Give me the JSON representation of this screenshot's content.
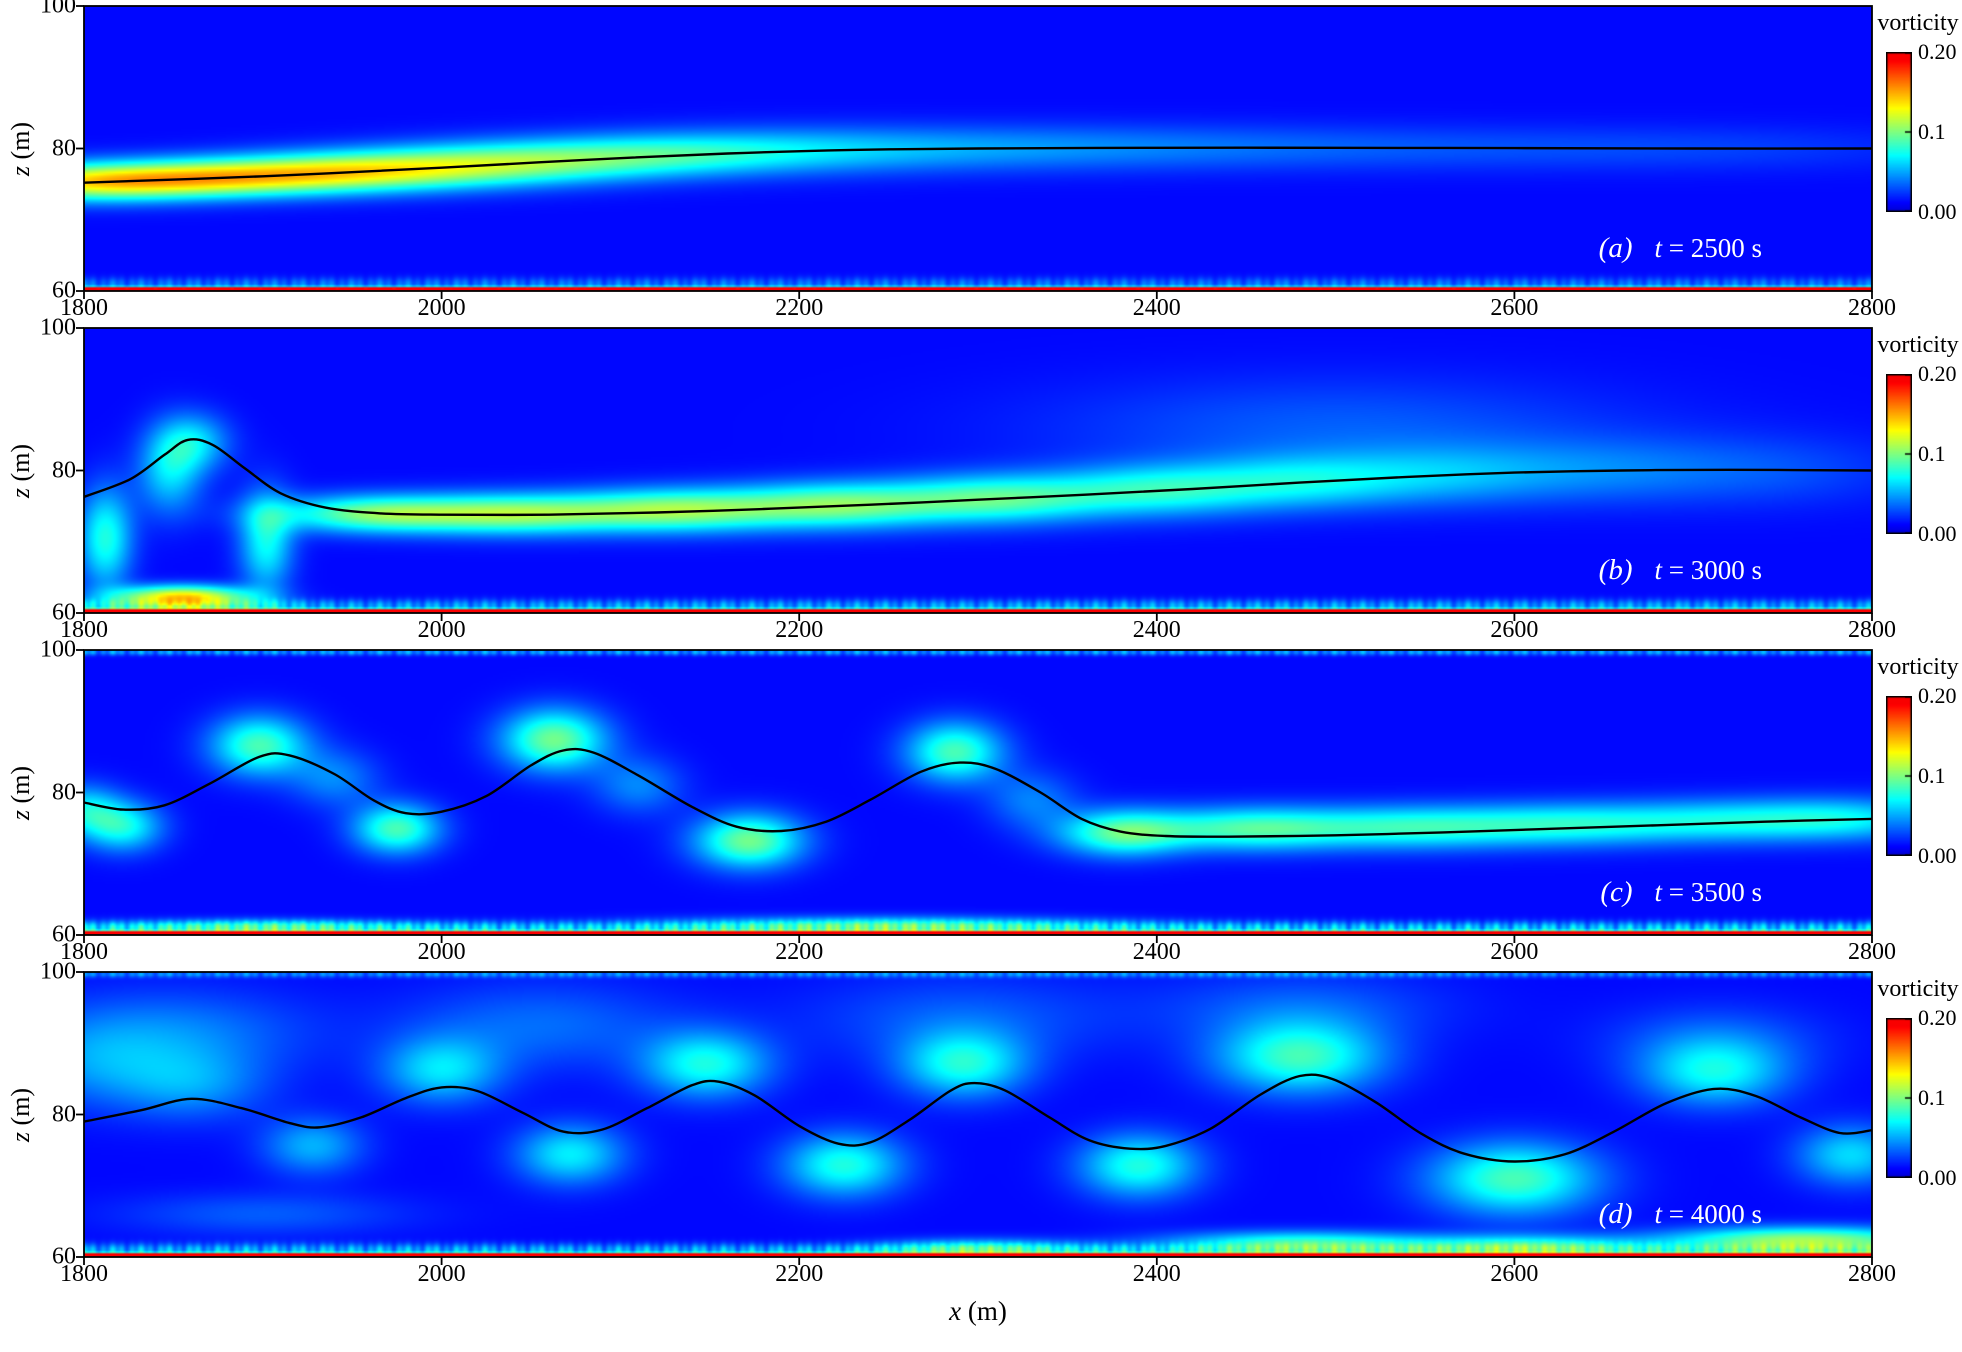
{
  "figure": {
    "x_axis": {
      "var": "x",
      "unit": " (m)",
      "ticks": [
        "1800",
        "2000",
        "2200",
        "2400",
        "2600",
        "2800"
      ],
      "tick_values": [
        1800,
        2000,
        2200,
        2400,
        2600,
        2800
      ],
      "range": [
        1800,
        2800
      ]
    },
    "z_axis": {
      "var": "z",
      "unit": " (m)",
      "ticks": [
        "100",
        "80",
        "60"
      ],
      "tick_values": [
        100,
        80,
        60
      ],
      "range": [
        60,
        100
      ]
    },
    "colorbar": {
      "title": "vorticity",
      "ticks": [
        "0.20",
        "0.1",
        "0.00"
      ],
      "tick_values": [
        0.2,
        0.1,
        0.0
      ],
      "range": [
        0,
        0.2
      ]
    }
  },
  "chart_data": {
    "type": "heatmap",
    "x_range": [
      1800,
      2800
    ],
    "z_range": [
      60,
      100
    ],
    "value_label": "vorticity",
    "value_range": [
      0,
      0.2
    ],
    "background_vorticity": 0.012,
    "panels": [
      {
        "label": "(a)",
        "time_var": "t",
        "time_rest": " = 2500 s",
        "time_s": 2500,
        "interface_line": [
          [
            1800,
            75.2
          ],
          [
            1900,
            76.1
          ],
          [
            2000,
            77.3
          ],
          [
            2080,
            78.4
          ],
          [
            2160,
            79.3
          ],
          [
            2230,
            79.8
          ],
          [
            2300,
            80.0
          ],
          [
            2400,
            80.1
          ],
          [
            2500,
            80.1
          ],
          [
            2600,
            80.05
          ],
          [
            2700,
            80.0
          ],
          [
            2800,
            80.0
          ]
        ],
        "blobs": [
          [
            1800,
            75.2,
            0.1,
            70,
            2.6
          ],
          [
            1880,
            75.9,
            0.095,
            75,
            2.6
          ],
          [
            1960,
            76.9,
            0.085,
            75,
            2.8
          ],
          [
            2040,
            78.0,
            0.068,
            75,
            3.0
          ],
          [
            2120,
            79.1,
            0.05,
            75,
            3.0
          ],
          [
            2200,
            79.7,
            0.035,
            85,
            3.2
          ],
          [
            2300,
            80.0,
            0.024,
            95,
            3.2
          ],
          [
            2400,
            80.1,
            0.016,
            100,
            3.2
          ],
          [
            2500,
            80.1,
            0.012,
            110,
            3.2
          ],
          [
            2620,
            80.0,
            0.01,
            120,
            3.2
          ],
          [
            2740,
            80.0,
            0.009,
            120,
            3.2
          ]
        ],
        "bottom_red": [
          0.3,
          60.15,
          0.35
        ],
        "bottom_green": [
          0.035,
          61.0,
          0.9
        ],
        "top_green": null
      },
      {
        "label": "(b)",
        "time_var": "t",
        "time_rest": " = 3000 s",
        "time_s": 3000,
        "interface_line": [
          [
            1800,
            76.3
          ],
          [
            1826,
            78.8
          ],
          [
            1845,
            82.2
          ],
          [
            1858,
            84.3
          ],
          [
            1872,
            83.6
          ],
          [
            1890,
            80.3
          ],
          [
            1910,
            76.8
          ],
          [
            1935,
            74.8
          ],
          [
            1965,
            74.0
          ],
          [
            2000,
            73.8
          ],
          [
            2060,
            73.8
          ],
          [
            2120,
            74.1
          ],
          [
            2180,
            74.6
          ],
          [
            2240,
            75.2
          ],
          [
            2300,
            75.9
          ],
          [
            2360,
            76.6
          ],
          [
            2420,
            77.4
          ],
          [
            2480,
            78.3
          ],
          [
            2540,
            79.1
          ],
          [
            2600,
            79.7
          ],
          [
            2660,
            80.0
          ],
          [
            2720,
            80.1
          ],
          [
            2800,
            80.0
          ]
        ],
        "blobs": [
          [
            1812,
            70.5,
            0.065,
            15,
            7.0
          ],
          [
            1848,
            80.0,
            0.05,
            18,
            6.0
          ],
          [
            1862,
            84.0,
            0.045,
            20,
            4.0
          ],
          [
            1902,
            70.0,
            0.06,
            15,
            7.0
          ],
          [
            1855,
            62.2,
            0.13,
            38,
            1.6
          ],
          [
            1960,
            73.9,
            0.08,
            55,
            2.6
          ],
          [
            2040,
            73.9,
            0.085,
            60,
            2.8
          ],
          [
            2130,
            74.4,
            0.085,
            60,
            3.0
          ],
          [
            2220,
            75.1,
            0.08,
            60,
            3.2
          ],
          [
            2310,
            76.0,
            0.072,
            60,
            3.4
          ],
          [
            2400,
            77.2,
            0.058,
            60,
            3.6
          ],
          [
            2480,
            78.4,
            0.045,
            60,
            3.8
          ],
          [
            2560,
            79.3,
            0.032,
            65,
            4.2
          ],
          [
            2650,
            79.9,
            0.022,
            70,
            4.6
          ],
          [
            2745,
            80.0,
            0.016,
            75,
            5.0
          ],
          [
            2500,
            86.0,
            0.02,
            160,
            7.0
          ]
        ],
        "bottom_red": [
          0.3,
          60.15,
          0.35
        ],
        "bottom_green": [
          0.05,
          61.0,
          0.9
        ],
        "top_green": null
      },
      {
        "label": "(c)",
        "time_var": "t",
        "time_rest": " = 3500 s",
        "time_s": 3500,
        "interface_line": [
          [
            1800,
            78.6
          ],
          [
            1822,
            77.6
          ],
          [
            1845,
            78.2
          ],
          [
            1870,
            81.2
          ],
          [
            1898,
            85.0
          ],
          [
            1915,
            85.2
          ],
          [
            1940,
            82.6
          ],
          [
            1962,
            78.9
          ],
          [
            1980,
            77.1
          ],
          [
            2000,
            77.3
          ],
          [
            2025,
            79.5
          ],
          [
            2050,
            83.8
          ],
          [
            2068,
            85.9
          ],
          [
            2085,
            85.6
          ],
          [
            2110,
            82.4
          ],
          [
            2140,
            78.0
          ],
          [
            2165,
            75.2
          ],
          [
            2190,
            74.6
          ],
          [
            2215,
            75.9
          ],
          [
            2240,
            79.0
          ],
          [
            2268,
            82.9
          ],
          [
            2290,
            84.2
          ],
          [
            2310,
            83.3
          ],
          [
            2335,
            80.0
          ],
          [
            2358,
            76.3
          ],
          [
            2380,
            74.5
          ],
          [
            2405,
            73.9
          ],
          [
            2440,
            73.8
          ],
          [
            2500,
            74.0
          ],
          [
            2560,
            74.4
          ],
          [
            2620,
            74.9
          ],
          [
            2680,
            75.4
          ],
          [
            2740,
            75.9
          ],
          [
            2800,
            76.3
          ]
        ],
        "blobs": [
          [
            1800,
            77.6,
            0.05,
            20,
            3.5
          ],
          [
            1822,
            75.2,
            0.06,
            22,
            3.5
          ],
          [
            1898,
            86.6,
            0.075,
            27,
            4.2
          ],
          [
            1975,
            74.9,
            0.075,
            24,
            3.5
          ],
          [
            2063,
            87.4,
            0.085,
            29,
            4.3
          ],
          [
            2172,
            73.2,
            0.085,
            30,
            3.8
          ],
          [
            2287,
            85.7,
            0.075,
            27,
            4.2
          ],
          [
            2380,
            74.3,
            0.075,
            35,
            3.2
          ],
          [
            2450,
            74.9,
            0.07,
            55,
            3.0
          ],
          [
            2540,
            75.1,
            0.062,
            65,
            3.0
          ],
          [
            2630,
            75.5,
            0.055,
            65,
            3.0
          ],
          [
            2720,
            76.0,
            0.05,
            65,
            3.0
          ],
          [
            2790,
            76.3,
            0.045,
            55,
            3.0
          ],
          [
            1940,
            82.0,
            0.03,
            25,
            4.0
          ],
          [
            2110,
            81.0,
            0.03,
            25,
            4.0
          ],
          [
            2330,
            79.0,
            0.028,
            25,
            4.0
          ],
          [
            2250,
            61.5,
            0.05,
            120,
            1.2
          ],
          [
            1900,
            61.3,
            0.04,
            80,
            1.0
          ]
        ],
        "bottom_red": [
          0.3,
          60.15,
          0.35
        ],
        "bottom_green": [
          0.065,
          61.0,
          0.9
        ],
        "top_green": [
          0.05,
          99.7,
          0.45
        ]
      },
      {
        "label": "(d)",
        "time_var": "t",
        "time_rest": " = 4000 s",
        "time_s": 4000,
        "interface_line": [
          [
            1800,
            79.0
          ],
          [
            1832,
            80.6
          ],
          [
            1860,
            82.2
          ],
          [
            1888,
            80.9
          ],
          [
            1915,
            78.8
          ],
          [
            1932,
            78.2
          ],
          [
            1955,
            79.6
          ],
          [
            1980,
            82.3
          ],
          [
            2000,
            83.8
          ],
          [
            2020,
            83.3
          ],
          [
            2045,
            80.3
          ],
          [
            2068,
            77.6
          ],
          [
            2090,
            77.9
          ],
          [
            2115,
            80.9
          ],
          [
            2140,
            84.1
          ],
          [
            2155,
            84.6
          ],
          [
            2175,
            82.7
          ],
          [
            2200,
            78.4
          ],
          [
            2222,
            75.9
          ],
          [
            2240,
            76.1
          ],
          [
            2262,
            79.3
          ],
          [
            2285,
            83.4
          ],
          [
            2298,
            84.4
          ],
          [
            2315,
            83.4
          ],
          [
            2340,
            79.6
          ],
          [
            2362,
            76.4
          ],
          [
            2385,
            75.2
          ],
          [
            2405,
            75.6
          ],
          [
            2430,
            78.0
          ],
          [
            2458,
            82.8
          ],
          [
            2480,
            85.4
          ],
          [
            2498,
            85.0
          ],
          [
            2522,
            81.8
          ],
          [
            2548,
            77.3
          ],
          [
            2572,
            74.5
          ],
          [
            2600,
            73.4
          ],
          [
            2628,
            74.4
          ],
          [
            2655,
            77.5
          ],
          [
            2685,
            81.6
          ],
          [
            2712,
            83.6
          ],
          [
            2735,
            82.6
          ],
          [
            2760,
            79.6
          ],
          [
            2782,
            77.4
          ],
          [
            2800,
            77.8
          ]
        ],
        "blobs": [
          [
            1860,
            84.2,
            0.032,
            42,
            5.0
          ],
          [
            2000,
            86.2,
            0.05,
            33,
            4.6
          ],
          [
            2148,
            87.0,
            0.062,
            35,
            4.6
          ],
          [
            2292,
            87.0,
            0.062,
            35,
            4.6
          ],
          [
            2480,
            88.0,
            0.072,
            46,
            5.0
          ],
          [
            2712,
            85.8,
            0.055,
            40,
            4.6
          ],
          [
            1928,
            75.6,
            0.04,
            28,
            4.0
          ],
          [
            2072,
            74.4,
            0.055,
            30,
            4.2
          ],
          [
            2225,
            72.9,
            0.065,
            33,
            4.4
          ],
          [
            2390,
            72.8,
            0.065,
            33,
            4.4
          ],
          [
            2600,
            71.0,
            0.075,
            46,
            5.0
          ],
          [
            2788,
            74.3,
            0.05,
            30,
            4.2
          ],
          [
            1850,
            91.5,
            0.028,
            75,
            6.0
          ],
          [
            2055,
            92.5,
            0.024,
            75,
            6.0
          ],
          [
            2290,
            93.5,
            0.02,
            85,
            6.0
          ],
          [
            1805,
            87.0,
            0.025,
            45,
            6.0
          ],
          [
            2480,
            95.0,
            0.02,
            80,
            5.0
          ],
          [
            2712,
            90.5,
            0.02,
            60,
            5.0
          ],
          [
            2480,
            62.0,
            0.07,
            75,
            1.6
          ],
          [
            2608,
            61.6,
            0.06,
            65,
            1.5
          ],
          [
            2762,
            62.4,
            0.095,
            75,
            1.8
          ],
          [
            2300,
            61.3,
            0.05,
            55,
            1.3
          ],
          [
            1900,
            66.0,
            0.02,
            80,
            3.0
          ]
        ],
        "bottom_red": [
          0.3,
          60.15,
          0.35
        ],
        "bottom_green": [
          0.055,
          61.0,
          0.9
        ],
        "top_green": [
          0.04,
          99.7,
          0.45
        ]
      }
    ]
  }
}
